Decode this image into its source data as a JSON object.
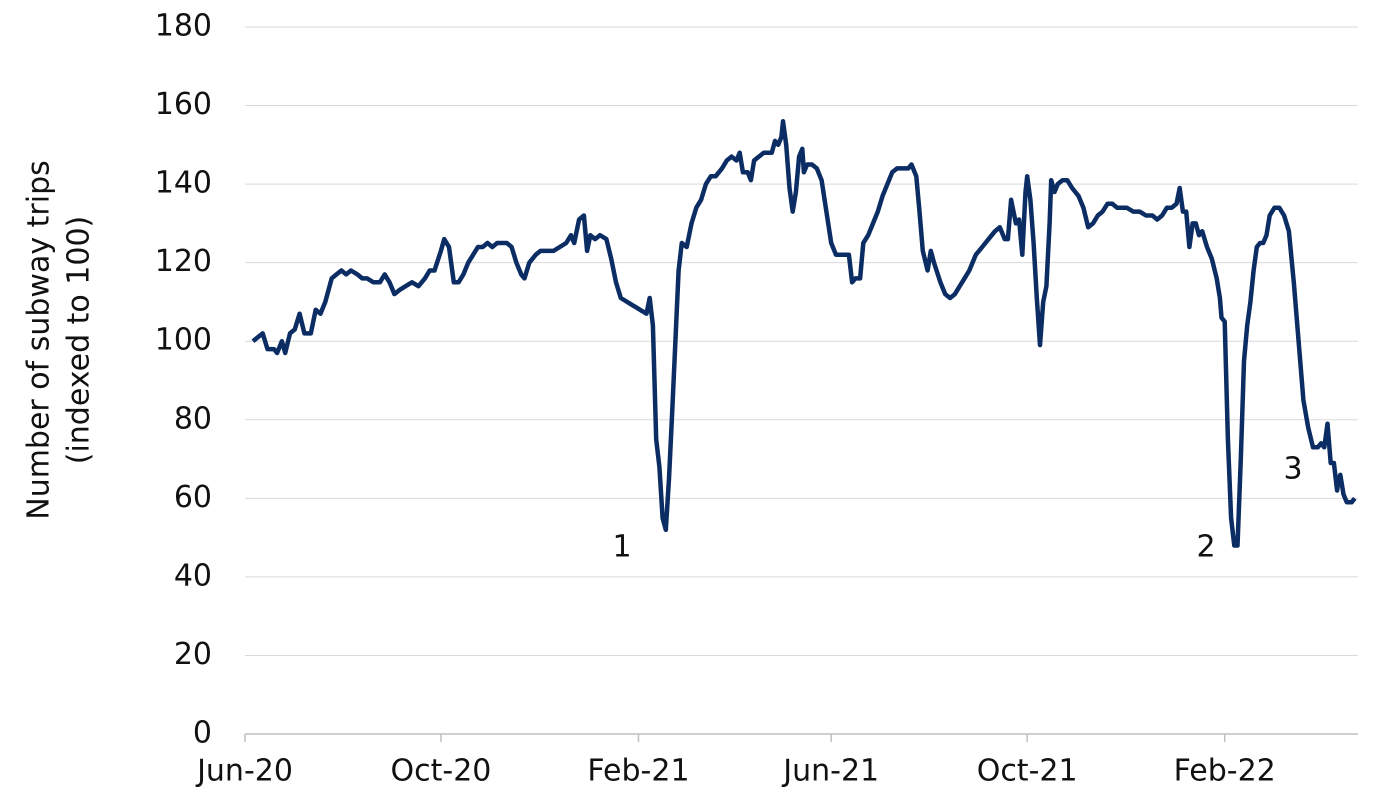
{
  "chart_data": {
    "type": "line",
    "y_label": [
      "Number of subway trips",
      "(indexed to 100)"
    ],
    "annotations": [
      "1",
      "2",
      "3"
    ],
    "xlim": [
      0,
      693
    ],
    "xticks": [
      {
        "value": 0,
        "label": "Jun-20"
      },
      {
        "value": 122,
        "label": "Oct-20"
      },
      {
        "value": 245,
        "label": "Feb-21"
      },
      {
        "value": 365,
        "label": "Jun-21"
      },
      {
        "value": 487,
        "label": "Oct-21"
      },
      {
        "value": 610,
        "label": "Feb-22"
      }
    ],
    "ylim": [
      0,
      180
    ],
    "yticks": [
      0,
      20,
      40,
      60,
      80,
      100,
      120,
      140,
      160,
      180
    ],
    "grid": true,
    "series": [
      {
        "color": "#0b2d63",
        "x": [
          5,
          8,
          11,
          14,
          18,
          20,
          23,
          25,
          28,
          31,
          34,
          37,
          41,
          44,
          47,
          50,
          54,
          57,
          60,
          63,
          66,
          70,
          73,
          76,
          80,
          84,
          87,
          90,
          93,
          96,
          100,
          104,
          108,
          112,
          115,
          118,
          122,
          124,
          127,
          130,
          133,
          136,
          139,
          142,
          145,
          148,
          151,
          154,
          157,
          160,
          163,
          166,
          169,
          172,
          174,
          177,
          181,
          184,
          188,
          192,
          196,
          200,
          203,
          205,
          208,
          211,
          213,
          215,
          218,
          221,
          225,
          228,
          231,
          234,
          238,
          242,
          246,
          250,
          252,
          254,
          256,
          258,
          260,
          262,
          264,
          266,
          268,
          270,
          272,
          275,
          278,
          281,
          284,
          287,
          290,
          293,
          297,
          300,
          303,
          306,
          308,
          310,
          313,
          315,
          317,
          320,
          323,
          326,
          328,
          330,
          332,
          334,
          335,
          337,
          339,
          341,
          343,
          345,
          347,
          348,
          350,
          353,
          356,
          359,
          362,
          365,
          368,
          371,
          376,
          378,
          380,
          383,
          385,
          388,
          391,
          394,
          397,
          400,
          403,
          406,
          409,
          413,
          415,
          418,
          420,
          422,
          425,
          427,
          429,
          433,
          436,
          439,
          442,
          445,
          448,
          451,
          455,
          459,
          463,
          467,
          470,
          473,
          475,
          477,
          480,
          482,
          484,
          486,
          487,
          489,
          491,
          493,
          495,
          497,
          499,
          501,
          502,
          504,
          506,
          509,
          512,
          515,
          519,
          522,
          525,
          528,
          531,
          534,
          537,
          540,
          543,
          546,
          549,
          553,
          557,
          561,
          565,
          568,
          571,
          574,
          577,
          580,
          582,
          584,
          586,
          588,
          590,
          592,
          594,
          596,
          599,
          602,
          605,
          607,
          608,
          610,
          612,
          614,
          616,
          618,
          620,
          622,
          624,
          626,
          628,
          630,
          632,
          634,
          636,
          638,
          641,
          644,
          647,
          650,
          653,
          656,
          659,
          662,
          665,
          668,
          670,
          672,
          674,
          676,
          678,
          680,
          681,
          682,
          684,
          686,
          689,
          691
        ],
        "values": [
          100,
          101,
          102,
          98,
          98,
          97,
          100,
          97,
          102,
          103,
          107,
          102,
          102,
          108,
          107,
          110,
          116,
          117,
          118,
          117,
          118,
          117,
          116,
          116,
          115,
          115,
          117,
          115,
          112,
          113,
          114,
          115,
          114,
          116,
          118,
          118,
          123,
          126,
          124,
          115,
          115,
          117,
          120,
          122,
          124,
          124,
          125,
          124,
          125,
          125,
          125,
          124,
          120,
          117,
          116,
          120,
          122,
          123,
          123,
          123,
          124,
          125,
          127,
          125,
          131,
          132,
          123,
          127,
          126,
          127,
          126,
          121,
          115,
          111,
          110,
          109,
          108,
          107,
          111,
          104,
          75,
          68,
          55,
          52,
          65,
          82,
          100,
          118,
          125,
          124,
          130,
          134,
          136,
          140,
          142,
          142,
          144,
          146,
          147,
          146,
          148,
          143,
          143,
          141,
          146,
          147,
          148,
          148,
          148,
          151,
          150,
          152,
          156,
          150,
          139,
          133,
          138,
          147,
          149,
          143,
          145,
          145,
          144,
          141,
          133,
          125,
          122,
          122,
          122,
          115,
          116,
          116,
          125,
          127,
          130,
          133,
          137,
          140,
          143,
          144,
          144,
          144,
          145,
          142,
          133,
          123,
          118,
          123,
          120,
          115,
          112,
          111,
          112,
          114,
          116,
          118,
          122,
          124,
          126,
          128,
          129,
          126,
          126,
          136,
          130,
          131,
          122,
          138,
          142,
          136,
          125,
          111,
          99,
          110,
          114,
          130,
          141,
          138,
          140,
          141,
          141,
          139,
          137,
          134,
          129,
          130,
          132,
          133,
          135,
          135,
          134,
          134,
          134,
          133,
          133,
          132,
          132,
          131,
          132,
          134,
          134,
          135,
          139,
          133,
          133,
          124,
          130,
          130,
          127,
          128,
          124,
          121,
          116,
          111,
          106,
          105,
          75,
          55,
          48,
          48,
          70,
          95,
          104,
          110,
          118,
          124,
          125,
          125,
          127,
          132,
          134,
          134,
          132,
          128,
          115,
          100,
          85,
          78,
          73,
          73,
          74,
          73,
          79,
          69,
          69,
          62,
          65,
          66,
          61,
          59,
          59,
          60
        ]
      }
    ]
  }
}
